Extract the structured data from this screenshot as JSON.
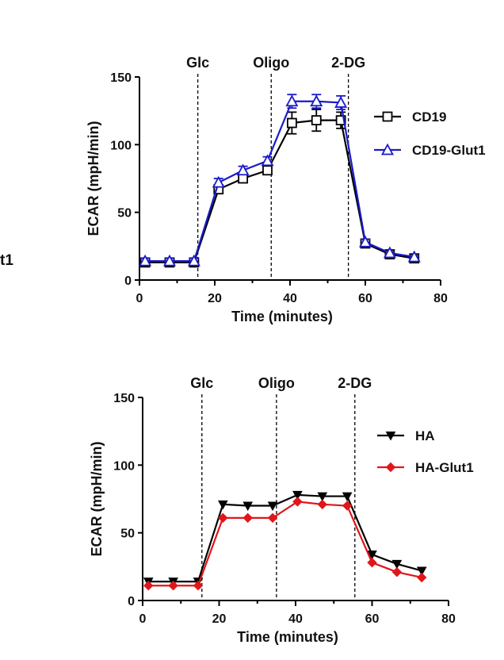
{
  "fragment_label": "t1",
  "chart_data": [
    {
      "type": "line",
      "xlabel": "Time (minutes)",
      "ylabel": "ECAR (mpH/min)",
      "xlim": [
        0,
        80
      ],
      "ylim": [
        0,
        150
      ],
      "xticks": [
        "0",
        "20",
        "40",
        "60",
        "80"
      ],
      "yticks": [
        "0",
        "50",
        "100",
        "150"
      ],
      "injections": [
        {
          "label": "Glc",
          "x": 15.5
        },
        {
          "label": "Oligo",
          "x": 35
        },
        {
          "label": "2-DG",
          "x": 55.5
        }
      ],
      "legend_position": "right",
      "x": [
        1.5,
        8,
        14.5,
        21,
        27.5,
        34,
        40.5,
        47,
        53.5,
        60,
        66.5,
        73
      ],
      "series": [
        {
          "name": "CD19",
          "color": "#000000",
          "marker": "square",
          "values": [
            13,
            13,
            13,
            67,
            75,
            81,
            116,
            118,
            118,
            27,
            19,
            16
          ],
          "errors": [
            2,
            2,
            2,
            3,
            3,
            3,
            8,
            8,
            6,
            2,
            1,
            1
          ]
        },
        {
          "name": "CD19-Glut1",
          "color": "#1a1ac8",
          "marker": "triangle",
          "values": [
            14,
            14,
            14,
            72,
            81,
            88,
            132,
            132,
            131,
            28,
            20,
            17
          ],
          "errors": [
            2,
            2,
            2,
            3,
            3,
            3,
            5,
            5,
            5,
            2,
            1,
            1
          ]
        }
      ]
    },
    {
      "type": "line",
      "xlabel": "Time (minutes)",
      "ylabel": "ECAR (mpH/min)",
      "xlim": [
        0,
        80
      ],
      "ylim": [
        0,
        150
      ],
      "xticks": [
        "0",
        "20",
        "40",
        "60",
        "80"
      ],
      "yticks": [
        "0",
        "50",
        "100",
        "150"
      ],
      "injections": [
        {
          "label": "Glc",
          "x": 15.5
        },
        {
          "label": "Oligo",
          "x": 35
        },
        {
          "label": "2-DG",
          "x": 55.5
        }
      ],
      "legend_position": "right",
      "x": [
        1.5,
        8,
        14.5,
        21,
        27.5,
        34,
        40.5,
        47,
        53.5,
        60,
        66.5,
        73
      ],
      "series": [
        {
          "name": "HA",
          "color": "#000000",
          "marker": "triangle-down",
          "values": [
            14,
            14,
            14,
            71,
            70,
            70,
            78,
            77,
            77,
            34,
            27,
            22
          ],
          "errors": []
        },
        {
          "name": "HA-Glut1",
          "color": "#e0161b",
          "marker": "diamond",
          "values": [
            11,
            11,
            11,
            61,
            61,
            61,
            73,
            71,
            70,
            28,
            21,
            17
          ],
          "errors": []
        }
      ]
    }
  ]
}
